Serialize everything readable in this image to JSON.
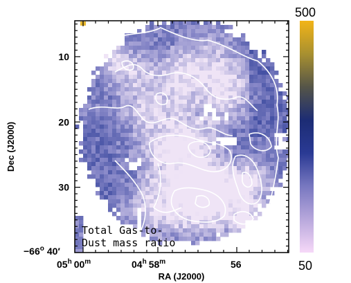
{
  "chart_data": {
    "type": "heatmap",
    "title": "",
    "xlabel": "RA (J2000)",
    "ylabel": "Dec (J2000)",
    "x_ticks": [
      {
        "h": "05",
        "hu": "h",
        "m": "00",
        "mu": "m"
      },
      {
        "h": "04",
        "hu": "h",
        "m": "58",
        "mu": "m"
      },
      {
        "h": "",
        "hu": "",
        "m": "56",
        "mu": ""
      }
    ],
    "y_ticks": [
      {
        "label": "10",
        "value": 10
      },
      {
        "label": "20",
        "value": 20
      },
      {
        "label": "30",
        "value": 30
      }
    ],
    "y_corner": {
      "deg": "−66",
      "deg_unit": "o",
      "min": "40",
      "min_unit": "′"
    },
    "ylim": [
      40,
      4.5
    ],
    "annotation": [
      "Total Gas-to-",
      "Dust mass ratio"
    ],
    "colorbar": {
      "min": 50,
      "max": 500,
      "min_label": "50",
      "max_label": "500",
      "colors": [
        "#f6d8f8",
        "#b8a8dc",
        "#7878c0",
        "#2a3a94",
        "#1c2c74",
        "#555548",
        "#a89030",
        "#f2b418"
      ]
    },
    "colors": {
      "low": "#efe4f6",
      "mid": "#8888c8",
      "high": "#2b3c96",
      "contour": "#ffffff",
      "frame": "#000000"
    }
  }
}
